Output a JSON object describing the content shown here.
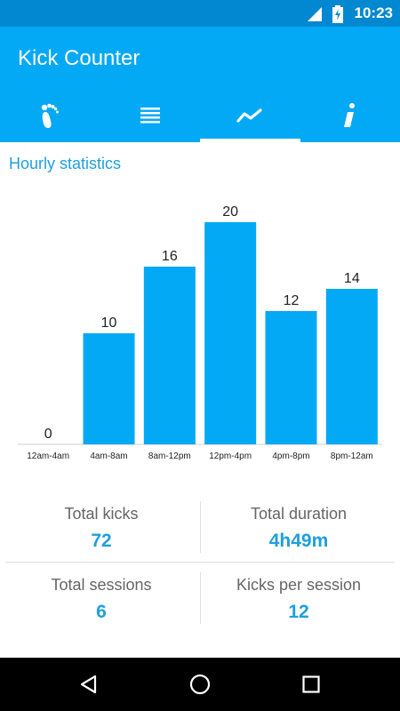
{
  "status_bar": {
    "time": "10:23"
  },
  "app": {
    "title": "Kick Counter"
  },
  "tabs": [
    {
      "icon": "footprint-icon",
      "active": false
    },
    {
      "icon": "list-icon",
      "active": false
    },
    {
      "icon": "chart-line-icon",
      "active": true
    },
    {
      "icon": "info-icon",
      "active": false
    }
  ],
  "section": {
    "title": "Hourly statistics"
  },
  "chart_data": {
    "type": "bar",
    "categories": [
      "12am-4am",
      "4am-8am",
      "8am-12pm",
      "12pm-4pm",
      "4pm-8pm",
      "8pm-12am"
    ],
    "values": [
      0,
      10,
      16,
      20,
      12,
      14
    ],
    "ylim": [
      0,
      20
    ],
    "bar_color": "#03a9f4",
    "grid": false
  },
  "stats": {
    "total_kicks_label": "Total kicks",
    "total_kicks_value": "72",
    "total_duration_label": "Total duration",
    "total_duration_value": "4h49m",
    "total_sessions_label": "Total sessions",
    "total_sessions_value": "6",
    "kicks_per_session_label": "Kicks per session",
    "kicks_per_session_value": "12"
  },
  "colors": {
    "primary": "#03a9f4",
    "primary_dark": "#0288d1",
    "accent_text": "#1e9fdf"
  }
}
